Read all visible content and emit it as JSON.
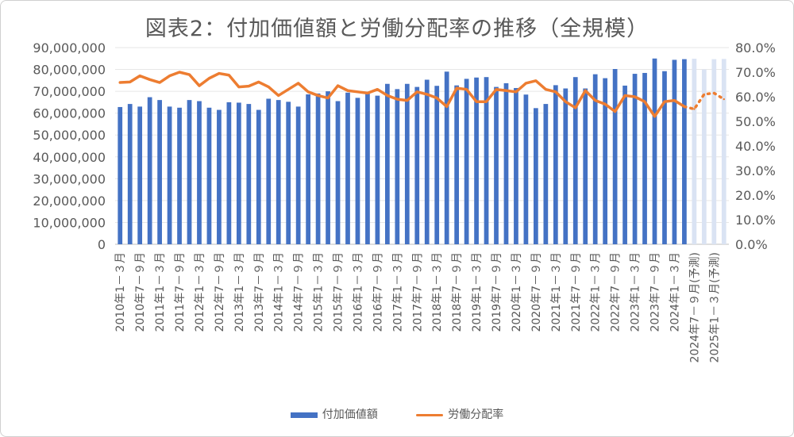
{
  "chart_data": {
    "type": "bar+line",
    "title": "図表2：付加価値額と労働分配率の推移（全規模）",
    "y_left": {
      "min": 0,
      "max": 90000000,
      "step": 10000000,
      "ticks": [
        "0",
        "10,000,000",
        "20,000,000",
        "30,000,000",
        "40,000,000",
        "50,000,000",
        "60,000,000",
        "70,000,000",
        "80,000,000",
        "90,000,000"
      ]
    },
    "y_right": {
      "min": 0,
      "max": 0.8,
      "step": 0.1,
      "ticks": [
        "0.0%",
        "10.0%",
        "20.0%",
        "30.0%",
        "40.0%",
        "50.0%",
        "60.0%",
        "70.0%",
        "80.0%"
      ]
    },
    "x_labels": [
      "2010年1－３月",
      "2010年7－９月",
      "2011年1－３月",
      "2011年7－９月",
      "2012年1－３月",
      "2012年7－９月",
      "2013年1－３月",
      "2013年7－９月",
      "2014年1－３月",
      "2014年7－９月",
      "2015年1－３月",
      "2015年7－９月",
      "2016年1－３月",
      "2016年7－９月",
      "2017年1－３月",
      "2017年7－９月",
      "2018年1－３月",
      "2018年7－９月",
      "2019年1－３月",
      "2019年7－９月",
      "2020年1－３月",
      "2020年7－９月",
      "2021年1－３月",
      "2021年7－９月",
      "2022年1－３月",
      "2022年7－９月",
      "2023年1－３月",
      "2023年7－９月",
      "2024年1－３月",
      "2024年7－９月(予測)",
      "2025年1－３月(予測)"
    ],
    "forecast_start_index": 58,
    "series": [
      {
        "name": "付加価値額",
        "type": "bar",
        "color": "#4472C4",
        "forecast_color": "#DAE3F3",
        "values": [
          62800000,
          64200000,
          63000000,
          67300000,
          66000000,
          63000000,
          62500000,
          66000000,
          65500000,
          62500000,
          61500000,
          65000000,
          64800000,
          64200000,
          61500000,
          66600000,
          66000000,
          65200000,
          63000000,
          68600000,
          69000000,
          70000000,
          65500000,
          69400000,
          67000000,
          68900000,
          68000000,
          73400000,
          71000000,
          73400000,
          72000000,
          75300000,
          72500000,
          79000000,
          72700000,
          75700000,
          76300000,
          76500000,
          72000000,
          73700000,
          71500000,
          68500000,
          62300000,
          64200000,
          72800000,
          71300000,
          76500000,
          71300000,
          77800000,
          76000000,
          80200000,
          72600000,
          78000000,
          78400000,
          85000000,
          79200000,
          84400000,
          84700000,
          84900000,
          80000000,
          84700000,
          84800000
        ]
      },
      {
        "name": "労働分配率",
        "type": "line",
        "color": "#ED7D31",
        "values": [
          0.658,
          0.66,
          0.685,
          0.67,
          0.658,
          0.685,
          0.7,
          0.69,
          0.645,
          0.675,
          0.695,
          0.688,
          0.64,
          0.643,
          0.66,
          0.64,
          0.605,
          0.63,
          0.655,
          0.62,
          0.605,
          0.595,
          0.645,
          0.625,
          0.62,
          0.615,
          0.63,
          0.605,
          0.59,
          0.585,
          0.62,
          0.61,
          0.595,
          0.56,
          0.635,
          0.63,
          0.58,
          0.58,
          0.63,
          0.625,
          0.62,
          0.655,
          0.665,
          0.63,
          0.62,
          0.58,
          0.555,
          0.625,
          0.585,
          0.57,
          0.54,
          0.605,
          0.6,
          0.58,
          0.52,
          0.58,
          0.585,
          0.56,
          0.55,
          0.61,
          0.615,
          0.59
        ]
      }
    ]
  }
}
